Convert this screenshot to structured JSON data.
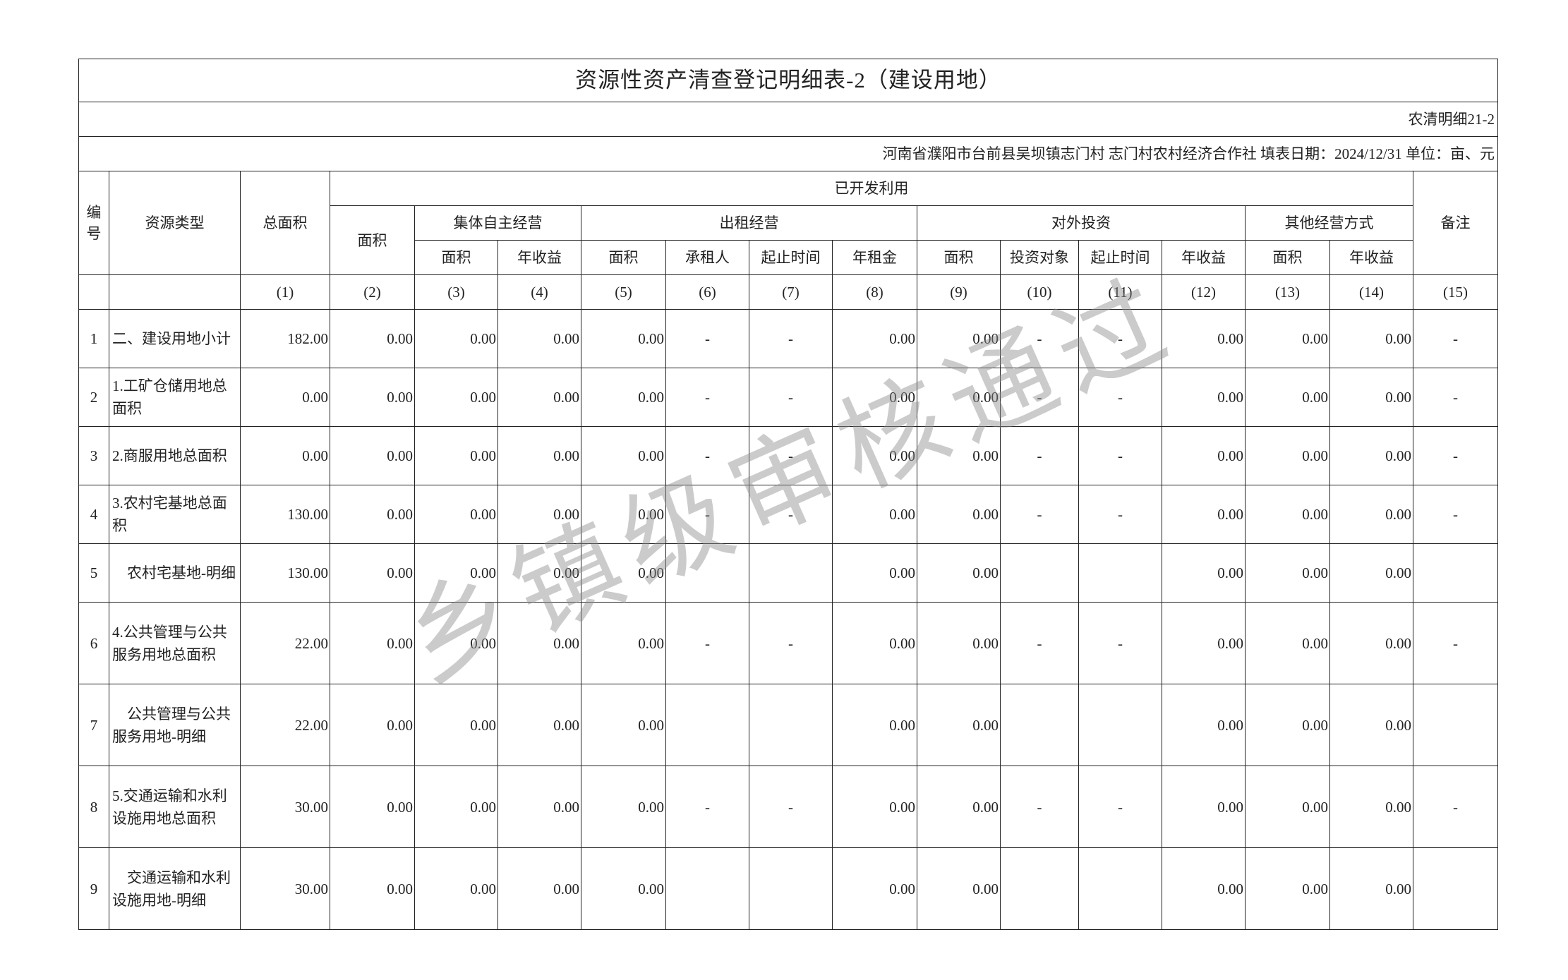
{
  "title": "资源性资产清查登记明细表-2（建设用地）",
  "form_code": "农清明细21-2",
  "info_line": "河南省濮阳市台前县吴坝镇志门村 志门村农村经济合作社  填表日期：2024/12/31  单位：亩、元",
  "headers": {
    "no": "编号",
    "type": "资源类型",
    "total_area": "总面积",
    "developed": "已开发利用",
    "remark": "备注",
    "area": "面积",
    "self_operated": "集体自主经营",
    "leased": "出租经营",
    "invest": "对外投资",
    "other": "其他经营方式",
    "sub": [
      "面积",
      "年收益",
      "面积",
      "承租人",
      "起止时间",
      "年租金",
      "面积",
      "投资对象",
      "起止时间",
      "年收益",
      "面积",
      "年收益"
    ]
  },
  "index_row": [
    "",
    "",
    "(1)",
    "(2)",
    "(3)",
    "(4)",
    "(5)",
    "(6)",
    "(7)",
    "(8)",
    "(9)",
    "(10)",
    "(11)",
    "(12)",
    "(13)",
    "(14)",
    "(15)"
  ],
  "rows": [
    [
      "1",
      "二、建设用地小计",
      "182.00",
      "0.00",
      "0.00",
      "0.00",
      "0.00",
      "-",
      "-",
      "0.00",
      "0.00",
      "-",
      "-",
      "0.00",
      "0.00",
      "0.00",
      "-"
    ],
    [
      "2",
      "1.工矿仓储用地总面积",
      "0.00",
      "0.00",
      "0.00",
      "0.00",
      "0.00",
      "-",
      "-",
      "0.00",
      "0.00",
      "-",
      "-",
      "0.00",
      "0.00",
      "0.00",
      "-"
    ],
    [
      "3",
      "2.商服用地总面积",
      "0.00",
      "0.00",
      "0.00",
      "0.00",
      "0.00",
      "-",
      "-",
      "0.00",
      "0.00",
      "-",
      "-",
      "0.00",
      "0.00",
      "0.00",
      "-"
    ],
    [
      "4",
      "3.农村宅基地总面积",
      "130.00",
      "0.00",
      "0.00",
      "0.00",
      "0.00",
      "-",
      "-",
      "0.00",
      "0.00",
      "-",
      "-",
      "0.00",
      "0.00",
      "0.00",
      "-"
    ],
    [
      "5",
      "　农村宅基地-明细",
      "130.00",
      "0.00",
      "0.00",
      "0.00",
      "0.00",
      "",
      "",
      "0.00",
      "0.00",
      "",
      "",
      "0.00",
      "0.00",
      "0.00",
      ""
    ],
    [
      "6",
      "4.公共管理与公共服务用地总面积",
      "22.00",
      "0.00",
      "0.00",
      "0.00",
      "0.00",
      "-",
      "-",
      "0.00",
      "0.00",
      "-",
      "-",
      "0.00",
      "0.00",
      "0.00",
      "-"
    ],
    [
      "7",
      "　公共管理与公共服务用地-明细",
      "22.00",
      "0.00",
      "0.00",
      "0.00",
      "0.00",
      "",
      "",
      "0.00",
      "0.00",
      "",
      "",
      "0.00",
      "0.00",
      "0.00",
      ""
    ],
    [
      "8",
      "5.交通运输和水利设施用地总面积",
      "30.00",
      "0.00",
      "0.00",
      "0.00",
      "0.00",
      "-",
      "-",
      "0.00",
      "0.00",
      "-",
      "-",
      "0.00",
      "0.00",
      "0.00",
      "-"
    ],
    [
      "9",
      "　交通运输和水利设施用地-明细",
      "30.00",
      "0.00",
      "0.00",
      "0.00",
      "0.00",
      "",
      "",
      "0.00",
      "0.00",
      "",
      "",
      "0.00",
      "0.00",
      "0.00",
      ""
    ]
  ],
  "watermark": "乡镇级审核通过"
}
